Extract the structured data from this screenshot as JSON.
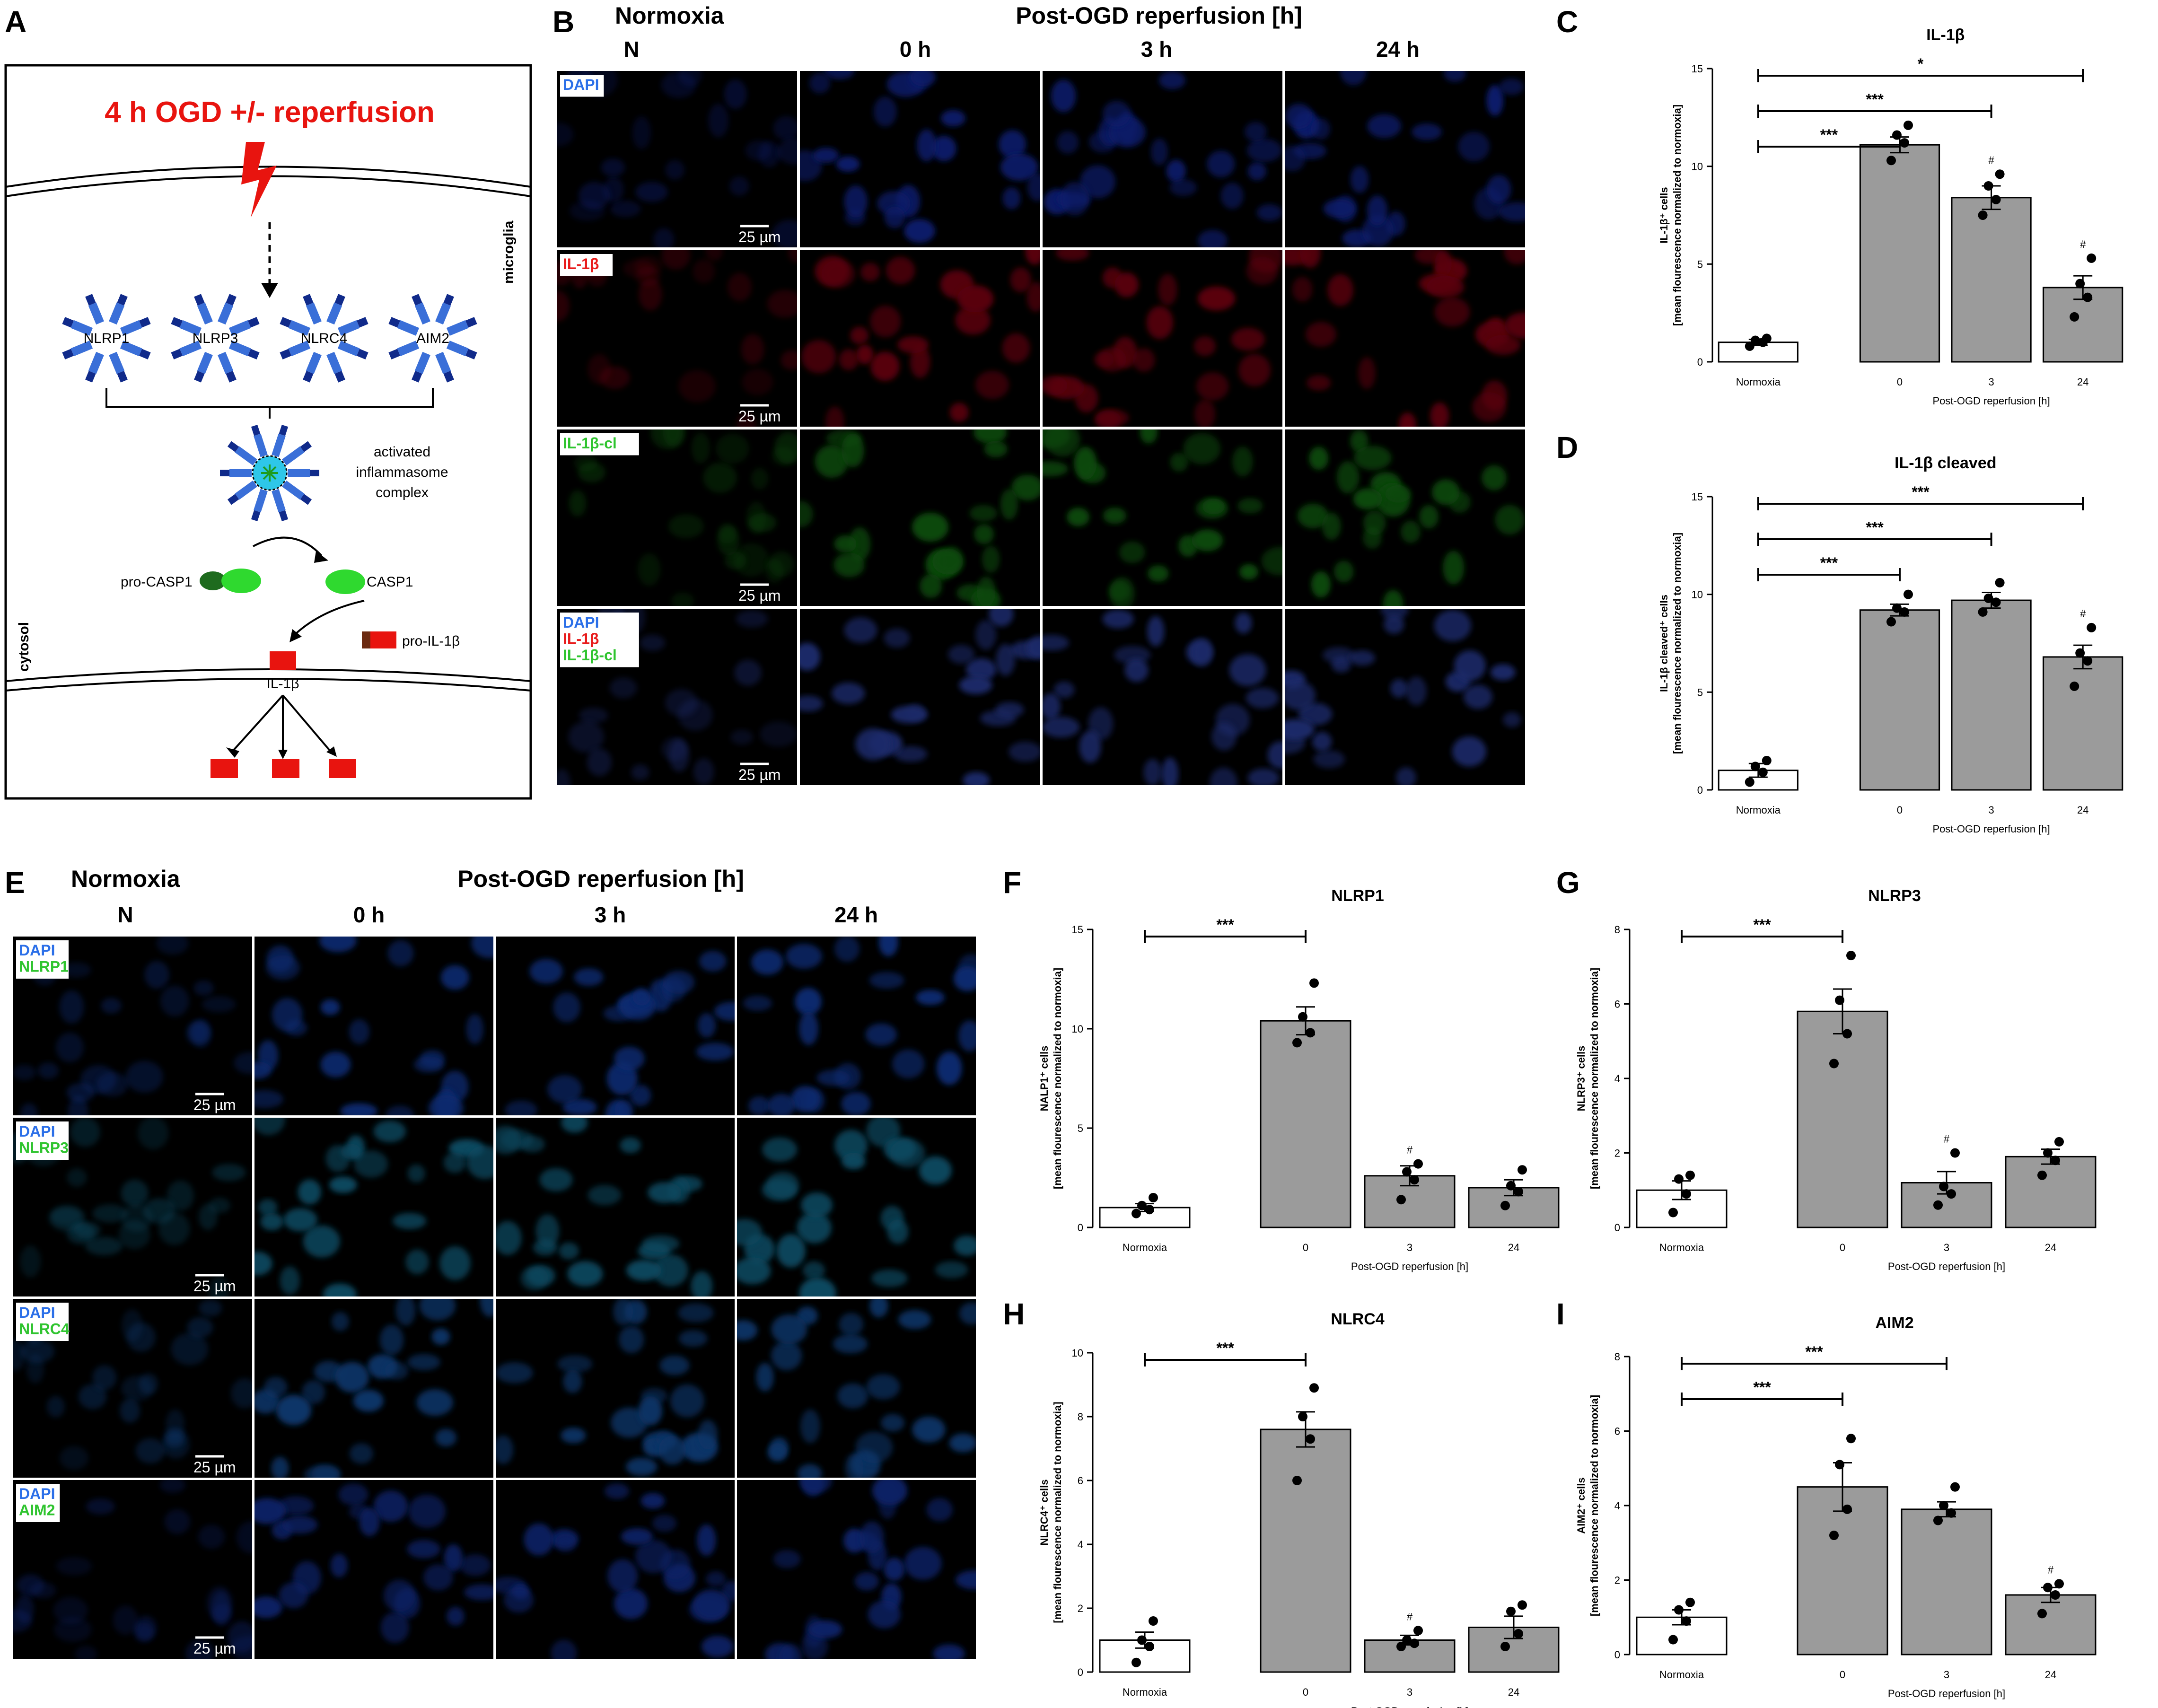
{
  "panel_letters": {
    "a": "A",
    "b": "B",
    "c": "C",
    "d": "D",
    "e": "E",
    "f": "F",
    "g": "G",
    "h": "H",
    "i": "I"
  },
  "diagram": {
    "title": "4 h OGD +/- reperfusion",
    "microglia_label": "microglia",
    "cytosol_label": "cytosol",
    "sensors": [
      "NLRP1",
      "NLRP3",
      "NLRC4",
      "AIM2"
    ],
    "complex_label_lines": [
      "activated",
      "inflammasome",
      "complex"
    ],
    "pro_casp1": "pro-CASP1",
    "casp1": "CASP1",
    "pro_il1b": "pro-IL-1β",
    "il1b": "IL-1β",
    "colors": {
      "title": "#e8140f",
      "sensor": "#3a6fd8",
      "sensor_dark": "#102a8a",
      "casp_dark": "#1e6b1e",
      "casp_light": "#2fd92f",
      "il1b": "#e8140f",
      "bolt": "#e8140f"
    }
  },
  "micrographs_b": {
    "normoxia": "Normoxia",
    "post": "Post-OGD reperfusion [h]",
    "columns": [
      "N",
      "0 h",
      "3 h",
      "24 h"
    ],
    "scale_bar": "25 µm",
    "rows": [
      {
        "labels": [
          {
            "text": "DAPI",
            "color": "#2b6fe8"
          }
        ],
        "tint": "#0a1d6b"
      },
      {
        "labels": [
          {
            "text": "IL-1β",
            "color": "#e81b1b"
          }
        ],
        "tint": "#5a0508"
      },
      {
        "labels": [
          {
            "text": "IL-1β-cl",
            "color": "#2fc42f"
          }
        ],
        "tint": "#0b4a0b"
      },
      {
        "labels": [
          {
            "text": "DAPI",
            "color": "#2b6fe8"
          },
          {
            "text": "IL-1β",
            "color": "#e81b1b"
          },
          {
            "text": "IL-1β-cl",
            "color": "#2fc42f"
          }
        ],
        "tint": "#1a2a6a"
      }
    ]
  },
  "micrographs_e": {
    "normoxia": "Normoxia",
    "post": "Post-OGD reperfusion [h]",
    "columns": [
      "N",
      "0 h",
      "3 h",
      "24 h"
    ],
    "scale_bar": "25 µm",
    "rows": [
      {
        "labels": [
          {
            "text": "DAPI",
            "color": "#2b6fe8"
          },
          {
            "text": "NLRP1",
            "color": "#2fc42f"
          }
        ],
        "tint": "#0c2a70"
      },
      {
        "labels": [
          {
            "text": "DAPI",
            "color": "#2b6fe8"
          },
          {
            "text": "NLRP3",
            "color": "#2fc42f"
          }
        ],
        "tint": "#0e4a60"
      },
      {
        "labels": [
          {
            "text": "DAPI",
            "color": "#2b6fe8"
          },
          {
            "text": "NLRC4",
            "color": "#2fc42f"
          }
        ],
        "tint": "#0c3468"
      },
      {
        "labels": [
          {
            "text": "DAPI",
            "color": "#2b6fe8"
          },
          {
            "text": "AIM2",
            "color": "#2fc42f"
          }
        ],
        "tint": "#0a2466"
      }
    ]
  },
  "chart_data": [
    {
      "panel": "C",
      "type": "bar",
      "title": "IL-1β",
      "ylabel_lines": [
        "IL-1β⁺ cells",
        "[mean flourescence normalized to normoxia]"
      ],
      "categories": [
        "Normoxia",
        "0",
        "3",
        "24"
      ],
      "xlabel": "Post-OGD reperfusion [h]",
      "ylim": [
        0,
        15
      ],
      "yticks": [
        0,
        5,
        10,
        15
      ],
      "values": [
        1.0,
        11.1,
        8.4,
        3.8
      ],
      "errors": [
        0.15,
        0.4,
        0.6,
        0.6
      ],
      "points": [
        [
          0.8,
          1.0,
          1.1,
          1.2
        ],
        [
          10.3,
          11.2,
          11.6,
          12.1
        ],
        [
          7.5,
          8.3,
          9.0,
          9.6
        ],
        [
          2.3,
          3.3,
          4.0,
          5.3
        ]
      ],
      "above": [
        "",
        "",
        "#",
        "#"
      ],
      "comparisons": [
        {
          "from": 0,
          "to": 1,
          "label": "***"
        },
        {
          "from": 0,
          "to": 2,
          "label": "***"
        },
        {
          "from": 0,
          "to": 3,
          "label": "*"
        }
      ]
    },
    {
      "panel": "D",
      "type": "bar",
      "title": "IL-1β cleaved",
      "ylabel_lines": [
        "IL-1β cleaved⁺ cells",
        "[mean flourescence normalized to normoxia]"
      ],
      "categories": [
        "Normoxia",
        "0",
        "3",
        "24"
      ],
      "xlabel": "Post-OGD reperfusion [h]",
      "ylim": [
        0,
        15
      ],
      "yticks": [
        0,
        5,
        10,
        15
      ],
      "values": [
        1.0,
        9.2,
        9.7,
        6.8
      ],
      "errors": [
        0.35,
        0.3,
        0.4,
        0.6
      ],
      "points": [
        [
          0.4,
          0.9,
          1.2,
          1.5
        ],
        [
          8.6,
          9.1,
          9.3,
          10.0
        ],
        [
          9.1,
          9.6,
          9.8,
          10.6
        ],
        [
          5.3,
          6.6,
          7.0,
          8.3
        ]
      ],
      "above": [
        "",
        "",
        "",
        "#"
      ],
      "comparisons": [
        {
          "from": 0,
          "to": 1,
          "label": "***"
        },
        {
          "from": 0,
          "to": 2,
          "label": "***"
        },
        {
          "from": 0,
          "to": 3,
          "label": "***"
        }
      ]
    },
    {
      "panel": "F",
      "type": "bar",
      "title": "NLRP1",
      "ylabel_lines": [
        "NALP1⁺ cells",
        "[mean flourescence normalized to normoxia]"
      ],
      "categories": [
        "Normoxia",
        "0",
        "3",
        "24"
      ],
      "xlabel": "Post-OGD reperfusion [h]",
      "ylim": [
        0,
        15
      ],
      "yticks": [
        0,
        5,
        10,
        15
      ],
      "values": [
        1.0,
        10.4,
        2.6,
        2.0
      ],
      "errors": [
        0.2,
        0.7,
        0.5,
        0.4
      ],
      "points": [
        [
          0.7,
          0.9,
          1.1,
          1.5
        ],
        [
          9.3,
          9.8,
          10.6,
          12.3
        ],
        [
          1.4,
          2.4,
          2.8,
          3.2
        ],
        [
          1.1,
          1.8,
          2.1,
          2.9
        ]
      ],
      "above": [
        "",
        "",
        "#",
        ""
      ],
      "comparisons": [
        {
          "from": 0,
          "to": 1,
          "label": "***"
        }
      ]
    },
    {
      "panel": "G",
      "type": "bar",
      "title": "NLRP3",
      "ylabel_lines": [
        "NLRP3⁺ cells",
        "[mean flourescence normalized to normoxia]"
      ],
      "categories": [
        "Normoxia",
        "0",
        "3",
        "24"
      ],
      "xlabel": "Post-OGD reperfusion [h]",
      "ylim": [
        0,
        8
      ],
      "yticks": [
        0,
        2,
        4,
        6,
        8
      ],
      "values": [
        1.0,
        5.8,
        1.2,
        1.9
      ],
      "errors": [
        0.25,
        0.6,
        0.3,
        0.2
      ],
      "points": [
        [
          0.4,
          0.9,
          1.3,
          1.4
        ],
        [
          4.4,
          5.2,
          6.1,
          7.3
        ],
        [
          0.6,
          0.9,
          1.1,
          2.0
        ],
        [
          1.4,
          1.8,
          2.0,
          2.3
        ]
      ],
      "above": [
        "",
        "",
        "#",
        ""
      ],
      "comparisons": [
        {
          "from": 0,
          "to": 1,
          "label": "***"
        }
      ]
    },
    {
      "panel": "H",
      "type": "bar",
      "title": "NLRC4",
      "ylabel_lines": [
        "NLRC4⁺ cells",
        "[mean flourescence normalized to normoxia]"
      ],
      "categories": [
        "Normoxia",
        "0",
        "3",
        "24"
      ],
      "xlabel": "Post-OGD reperfusion [h]",
      "ylim": [
        0,
        10
      ],
      "yticks": [
        0,
        2,
        4,
        6,
        8,
        10
      ],
      "values": [
        1.0,
        7.6,
        1.0,
        1.4
      ],
      "errors": [
        0.25,
        0.55,
        0.15,
        0.35
      ],
      "points": [
        [
          0.3,
          0.8,
          1.0,
          1.6
        ],
        [
          6.0,
          7.3,
          8.0,
          8.9
        ],
        [
          0.8,
          0.9,
          1.0,
          1.3
        ],
        [
          0.8,
          1.2,
          1.9,
          2.1
        ]
      ],
      "above": [
        "",
        "",
        "#",
        ""
      ],
      "comparisons": [
        {
          "from": 0,
          "to": 1,
          "label": "***"
        }
      ]
    },
    {
      "panel": "I",
      "type": "bar",
      "title": "AIM2",
      "ylabel_lines": [
        "AIM2⁺ cells",
        "[mean flourescence normalized to normoxia]"
      ],
      "categories": [
        "Normoxia",
        "0",
        "3",
        "24"
      ],
      "xlabel": "Post-OGD reperfusion [h]",
      "ylim": [
        0,
        8
      ],
      "yticks": [
        0,
        2,
        4,
        6,
        8
      ],
      "values": [
        1.0,
        4.5,
        3.9,
        1.6
      ],
      "errors": [
        0.2,
        0.65,
        0.2,
        0.2
      ],
      "points": [
        [
          0.4,
          0.9,
          1.2,
          1.4
        ],
        [
          3.2,
          3.9,
          5.1,
          5.8
        ],
        [
          3.6,
          3.8,
          4.0,
          4.5
        ],
        [
          1.1,
          1.6,
          1.8,
          1.9
        ]
      ],
      "above": [
        "",
        "",
        "",
        "#"
      ],
      "comparisons": [
        {
          "from": 0,
          "to": 1,
          "label": "***"
        },
        {
          "from": 0,
          "to": 2,
          "label": "***"
        }
      ]
    }
  ]
}
